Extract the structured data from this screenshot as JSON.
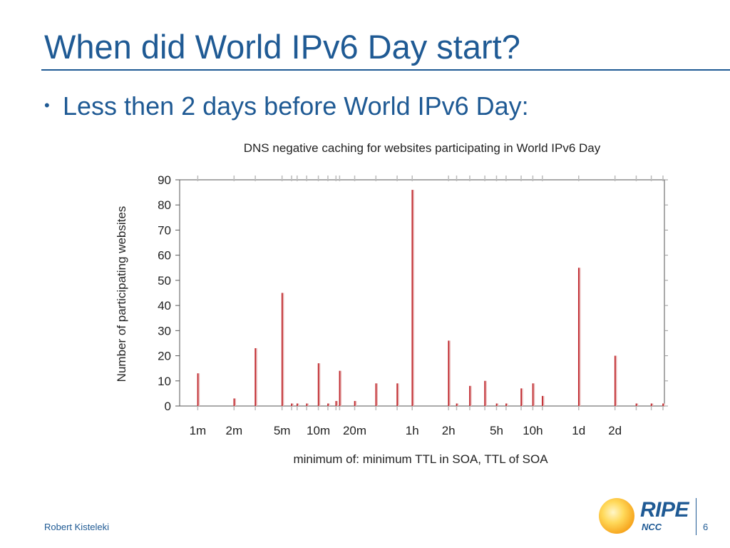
{
  "slide": {
    "title": "When did World IPv6 Day start?",
    "bullet": "Less then 2 days before World IPv6 Day:",
    "bullet_glyph": "•",
    "author": "Robert Kisteleki",
    "page_number": "6",
    "logo_word": "RIPE",
    "logo_sub": "NCC",
    "accent_color": "#1f5a94"
  },
  "chart_data": {
    "type": "bar",
    "title": "DNS negative caching for websites participating in World IPv6 Day",
    "xlabel": "minimum of: minimum TTL in SOA, TTL of SOA",
    "ylabel": "Number of participating websites",
    "x_scale": "log",
    "x_unit": "seconds",
    "xlim": [
      50,
      432000
    ],
    "ylim": [
      0,
      90
    ],
    "yticks": [
      0,
      10,
      20,
      30,
      40,
      50,
      60,
      70,
      80,
      90
    ],
    "xticks": [
      {
        "label": "1m",
        "value": 60
      },
      {
        "label": "2m",
        "value": 120
      },
      {
        "label": "5m",
        "value": 300
      },
      {
        "label": "10m",
        "value": 600
      },
      {
        "label": "20m",
        "value": 1200
      },
      {
        "label": "1h",
        "value": 3600
      },
      {
        "label": "2h",
        "value": 7200
      },
      {
        "label": "5h",
        "value": 18000
      },
      {
        "label": "10h",
        "value": 36000
      },
      {
        "label": "1d",
        "value": 86400
      },
      {
        "label": "2d",
        "value": 172800
      }
    ],
    "bar_color": "#c0282d",
    "grid": false,
    "points": [
      {
        "x": 60,
        "y": 13
      },
      {
        "x": 120,
        "y": 3
      },
      {
        "x": 180,
        "y": 23
      },
      {
        "x": 300,
        "y": 45
      },
      {
        "x": 360,
        "y": 1
      },
      {
        "x": 400,
        "y": 1
      },
      {
        "x": 480,
        "y": 1
      },
      {
        "x": 600,
        "y": 17
      },
      {
        "x": 720,
        "y": 1
      },
      {
        "x": 840,
        "y": 2
      },
      {
        "x": 900,
        "y": 14
      },
      {
        "x": 1200,
        "y": 2
      },
      {
        "x": 1800,
        "y": 9
      },
      {
        "x": 2700,
        "y": 9
      },
      {
        "x": 3600,
        "y": 86
      },
      {
        "x": 7200,
        "y": 26
      },
      {
        "x": 8400,
        "y": 1
      },
      {
        "x": 10800,
        "y": 8
      },
      {
        "x": 14400,
        "y": 10
      },
      {
        "x": 18000,
        "y": 1
      },
      {
        "x": 21600,
        "y": 1
      },
      {
        "x": 28800,
        "y": 7
      },
      {
        "x": 36000,
        "y": 9
      },
      {
        "x": 43200,
        "y": 4
      },
      {
        "x": 86400,
        "y": 55
      },
      {
        "x": 172800,
        "y": 20
      },
      {
        "x": 259200,
        "y": 1
      },
      {
        "x": 345600,
        "y": 1
      },
      {
        "x": 432000,
        "y": 1
      }
    ]
  }
}
